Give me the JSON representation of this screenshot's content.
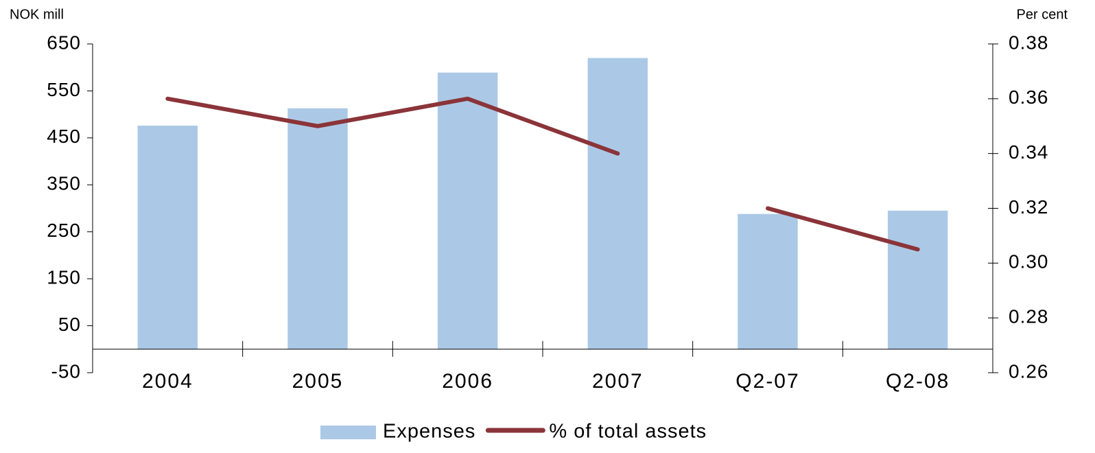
{
  "chart_data": {
    "type": "bar",
    "categories": [
      "2004",
      "2005",
      "2006",
      "2007",
      "Q2-07",
      "Q2-08"
    ],
    "series": [
      {
        "name": "Expenses",
        "type": "bar",
        "color": "#abc9e6",
        "values": [
          476,
          513,
          589,
          620,
          288,
          295
        ]
      },
      {
        "name": "% of total assets",
        "type": "line",
        "axis": "y2",
        "color": "#8b3439",
        "values": [
          0.36,
          0.35,
          0.36,
          0.34,
          0.32,
          0.305
        ],
        "break_after": [
          3
        ]
      }
    ],
    "ylabel": "NOK mill",
    "y2label": "Per cent",
    "ylim": [
      -50,
      650
    ],
    "yticks": [
      -50,
      50,
      150,
      250,
      350,
      450,
      550,
      650
    ],
    "y2lim": [
      0.26,
      0.38
    ],
    "y2ticks": [
      0.26,
      0.28,
      {
        "value": 0.3,
        "label": "0.30"
      },
      0.32,
      0.34,
      0.36,
      0.38
    ],
    "legend": "bottom"
  }
}
